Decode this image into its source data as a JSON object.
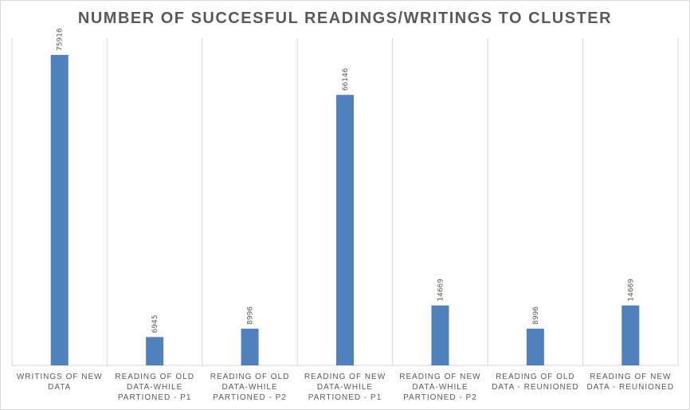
{
  "chart_data": {
    "type": "bar",
    "title": "NUMBER OF SUCCESFUL READINGS/WRITINGS TO CLUSTER",
    "categories": [
      [
        "WRITINGS OF NEW",
        "DATA"
      ],
      [
        "READING OF OLD",
        "DATA-WHILE",
        "PARTIONED - P1"
      ],
      [
        "READING OF OLD",
        "DATA-WHILE",
        "PARTIONED - P2"
      ],
      [
        "READING OF NEW",
        "DATA-WHILE",
        "PARTIONED - P1"
      ],
      [
        "READING OF NEW",
        "DATA-WHILE",
        "PARTIONED - P2"
      ],
      [
        "READING OF OLD",
        "DATA - REUNIONED"
      ],
      [
        "READING OF NEW",
        "DATA - REUNIONED"
      ]
    ],
    "values": [
      75916,
      6945,
      8996,
      66146,
      14669,
      8996,
      14669
    ],
    "data_labels": [
      "75916",
      "6945",
      "8996",
      "66146",
      "14669",
      "8996",
      "14669"
    ],
    "bar_color": "#4f81bd",
    "gridline_color": "#d9d9d9",
    "text_color": "#595959",
    "ylim": [
      0,
      80000
    ],
    "grid": "vertical category separators",
    "legend": "none"
  }
}
